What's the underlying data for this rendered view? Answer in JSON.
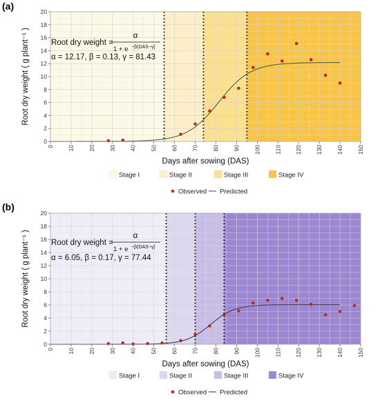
{
  "chart_data": [
    {
      "panel_label": "(a)",
      "type": "scatter",
      "xlabel": "Days after sowing (DAS)",
      "ylabel": "Root dry weight ( g plant⁻¹ )",
      "xlim": [
        0,
        150
      ],
      "ylim": [
        0,
        20
      ],
      "x_ticks": [
        0,
        10,
        20,
        30,
        40,
        50,
        60,
        70,
        80,
        90,
        100,
        110,
        120,
        130,
        140,
        150
      ],
      "y_ticks": [
        0,
        2,
        4,
        6,
        8,
        10,
        12,
        14,
        16,
        18,
        20
      ],
      "grid": true,
      "stage_boundaries": [
        55,
        74,
        95
      ],
      "stages": [
        {
          "name": "Stage I",
          "from": 0,
          "to": 55,
          "color": "#fdf9e7"
        },
        {
          "name": "Stage II",
          "from": 55,
          "to": 74,
          "color": "#fdf0c9"
        },
        {
          "name": "Stage III",
          "from": 74,
          "to": 95,
          "color": "#fbe08e"
        },
        {
          "name": "Stage IV",
          "from": 95,
          "to": 150,
          "color": "#f9c546"
        }
      ],
      "equation": {
        "lhs": "Root dry weight = ",
        "numerator": "α",
        "denominator_prefix": "1 + e",
        "denominator_exponent": "−β(DAS−γ)"
      },
      "params_text": "α = 12.17, β =  0.13, γ = 81.43",
      "model": {
        "alpha": 12.17,
        "beta": 0.13,
        "gamma": 81.43
      },
      "observed": {
        "x": [
          28,
          35,
          63,
          70,
          77,
          84,
          91,
          98,
          105,
          112,
          119,
          126,
          133,
          140
        ],
        "y": [
          0.1,
          0.2,
          1.1,
          2.7,
          4.7,
          6.8,
          8.2,
          11.4,
          13.5,
          12.4,
          15.1,
          12.6,
          10.2,
          9.0
        ]
      },
      "series": [
        {
          "name": "Observed",
          "marker": "point",
          "color": "#c0281d"
        },
        {
          "name": "Predicted",
          "marker": "line",
          "color": "#4e5e3e"
        }
      ]
    },
    {
      "panel_label": "(b)",
      "type": "scatter",
      "xlabel": "Days after sowing (DAS)",
      "ylabel": "Root dry weight ( g plant⁻¹ )",
      "xlim": [
        0,
        150
      ],
      "ylim": [
        0,
        20
      ],
      "x_ticks": [
        0,
        10,
        20,
        30,
        40,
        50,
        60,
        70,
        80,
        90,
        100,
        110,
        120,
        130,
        140,
        150
      ],
      "y_ticks": [
        0,
        2,
        4,
        6,
        8,
        10,
        12,
        14,
        16,
        18,
        20
      ],
      "grid": true,
      "stage_boundaries": [
        56,
        70,
        84
      ],
      "stages": [
        {
          "name": "Stage I",
          "from": 0,
          "to": 56,
          "color": "#efedf8"
        },
        {
          "name": "Stage II",
          "from": 56,
          "to": 70,
          "color": "#ddd7ef"
        },
        {
          "name": "Stage III",
          "from": 70,
          "to": 84,
          "color": "#c8bde6"
        },
        {
          "name": "Stage IV",
          "from": 84,
          "to": 150,
          "color": "#9e87d2"
        }
      ],
      "equation": {
        "lhs": "Root dry weight = ",
        "numerator": "α",
        "denominator_prefix": "1 + e",
        "denominator_exponent": "−β(DAS−γ)"
      },
      "params_text": "α = 6.05, β =  0.17, γ = 77.44",
      "model": {
        "alpha": 6.05,
        "beta": 0.17,
        "gamma": 77.44
      },
      "observed": {
        "x": [
          28,
          35,
          40,
          47,
          54,
          63,
          70,
          77,
          84,
          91,
          98,
          105,
          112,
          119,
          126,
          133,
          140,
          147
        ],
        "y": [
          0.1,
          0.2,
          0.05,
          0.1,
          0.2,
          0.55,
          1.5,
          2.8,
          4.5,
          5.1,
          6.3,
          6.7,
          7.0,
          6.7,
          6.1,
          4.5,
          5.0,
          5.9
        ]
      },
      "series": [
        {
          "name": "Observed",
          "marker": "point",
          "color": "#c0281d"
        },
        {
          "name": "Predicted",
          "marker": "line",
          "color": "#3d3d55"
        }
      ]
    }
  ]
}
